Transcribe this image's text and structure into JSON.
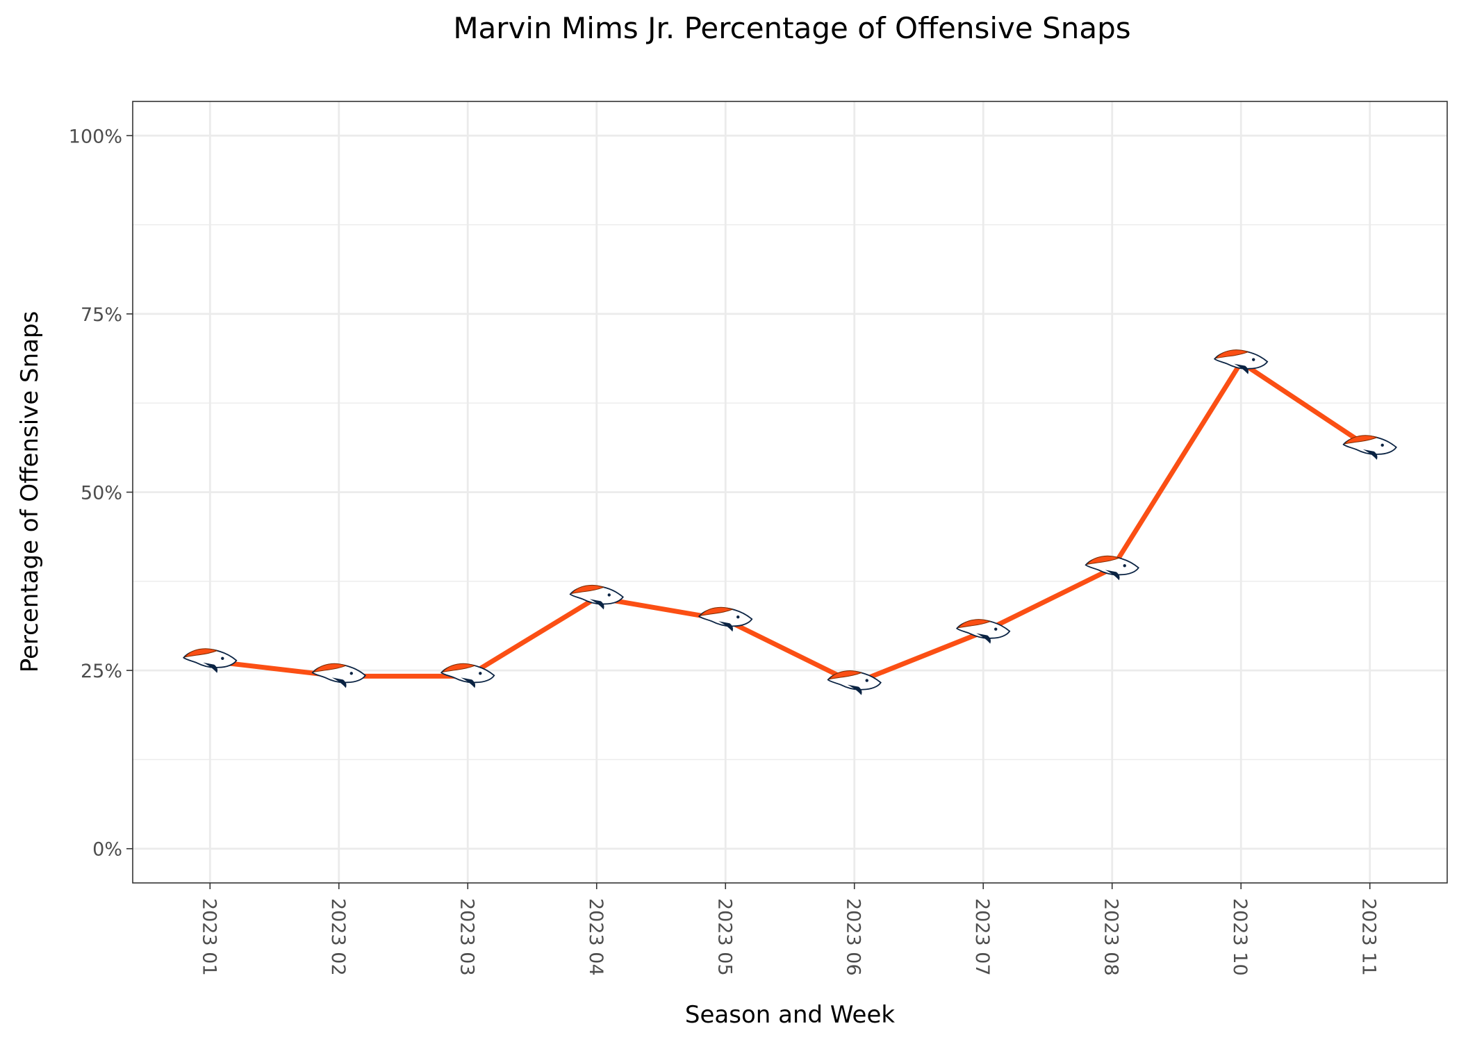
{
  "chart_data": {
    "type": "line",
    "title": "Marvin Mims Jr. Percentage of Offensive Snaps",
    "xlabel": "Season and Week",
    "ylabel": "Percentage of Offensive Snaps",
    "categories": [
      "2023 01",
      "2023 02",
      "2023 03",
      "2023 04",
      "2023 05",
      "2023 06",
      "2023 07",
      "2023 08",
      "2023 10",
      "2023 11"
    ],
    "series": [
      {
        "values": [
          26.3,
          24.2,
          24.2,
          35.2,
          32.1,
          23.2,
          30.4,
          39.3,
          68.2,
          56.2
        ]
      }
    ],
    "ylim": [
      -4.8,
      104.8
    ],
    "yticks": [
      0,
      25,
      50,
      75,
      100
    ],
    "ytick_labels": [
      "0%",
      "25%",
      "50%",
      "75%",
      "100%"
    ],
    "grid": true,
    "line_color": "#FB4F14",
    "marker": "broncos-logo-icon"
  }
}
